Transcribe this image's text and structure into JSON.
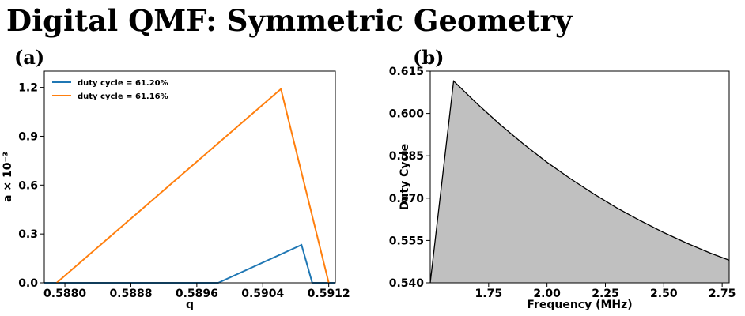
{
  "title": "Digital QMF: Symmetric Geometry",
  "chart_data": [
    {
      "panel_label": "(a)",
      "type": "line",
      "xlabel": "q",
      "ylabel": "a × 10⁻³",
      "xlim": [
        0.58775,
        0.59128
      ],
      "ylim": [
        0.0,
        1.3
      ],
      "xticks": [
        0.588,
        0.5888,
        0.5896,
        0.5904,
        0.5912
      ],
      "xtick_labels": [
        "0.5880",
        "0.5888",
        "0.5896",
        "0.5904",
        "0.5912"
      ],
      "yticks": [
        0.0,
        0.3,
        0.6,
        0.9,
        1.2
      ],
      "ytick_labels": [
        "0.0",
        "0.3",
        "0.6",
        "0.9",
        "1.2"
      ],
      "legend_position": "top-left",
      "series": [
        {
          "name": "duty cycle = 61.20%",
          "color": "#1f77b4",
          "x": [
            0.58775,
            0.58986,
            0.59087,
            0.591,
            0.59128
          ],
          "y": [
            0.0,
            0.0,
            0.233,
            0.0,
            0.0
          ]
        },
        {
          "name": "duty cycle = 61.16%",
          "color": "#ff7f0e",
          "x": [
            0.5879,
            0.59062,
            0.5912
          ],
          "y": [
            0.0,
            1.19,
            0.0
          ]
        }
      ]
    },
    {
      "panel_label": "(b)",
      "type": "area",
      "xlabel": "Frequency (MHz)",
      "ylabel": "Duty Cycle",
      "xlim": [
        1.5,
        2.78
      ],
      "ylim": [
        0.54,
        0.615
      ],
      "xticks": [
        1.75,
        2.0,
        2.25,
        2.5,
        2.75
      ],
      "xtick_labels": [
        "1.75",
        "2.00",
        "2.25",
        "2.50",
        "2.75"
      ],
      "yticks": [
        0.54,
        0.555,
        0.57,
        0.585,
        0.6,
        0.615
      ],
      "ytick_labels": [
        "0.540",
        "0.555",
        "0.570",
        "0.585",
        "0.600",
        "0.615"
      ],
      "fill_color": "#c0c0c0",
      "line_color": "#000000",
      "x": [
        1.5,
        1.6,
        1.7,
        1.8,
        1.9,
        2.0,
        2.1,
        2.2,
        2.3,
        2.4,
        2.5,
        2.6,
        2.7,
        2.78
      ],
      "y": [
        0.54,
        0.6115,
        0.6035,
        0.596,
        0.5891,
        0.5827,
        0.5769,
        0.5715,
        0.5665,
        0.562,
        0.5578,
        0.554,
        0.5505,
        0.548
      ]
    }
  ]
}
